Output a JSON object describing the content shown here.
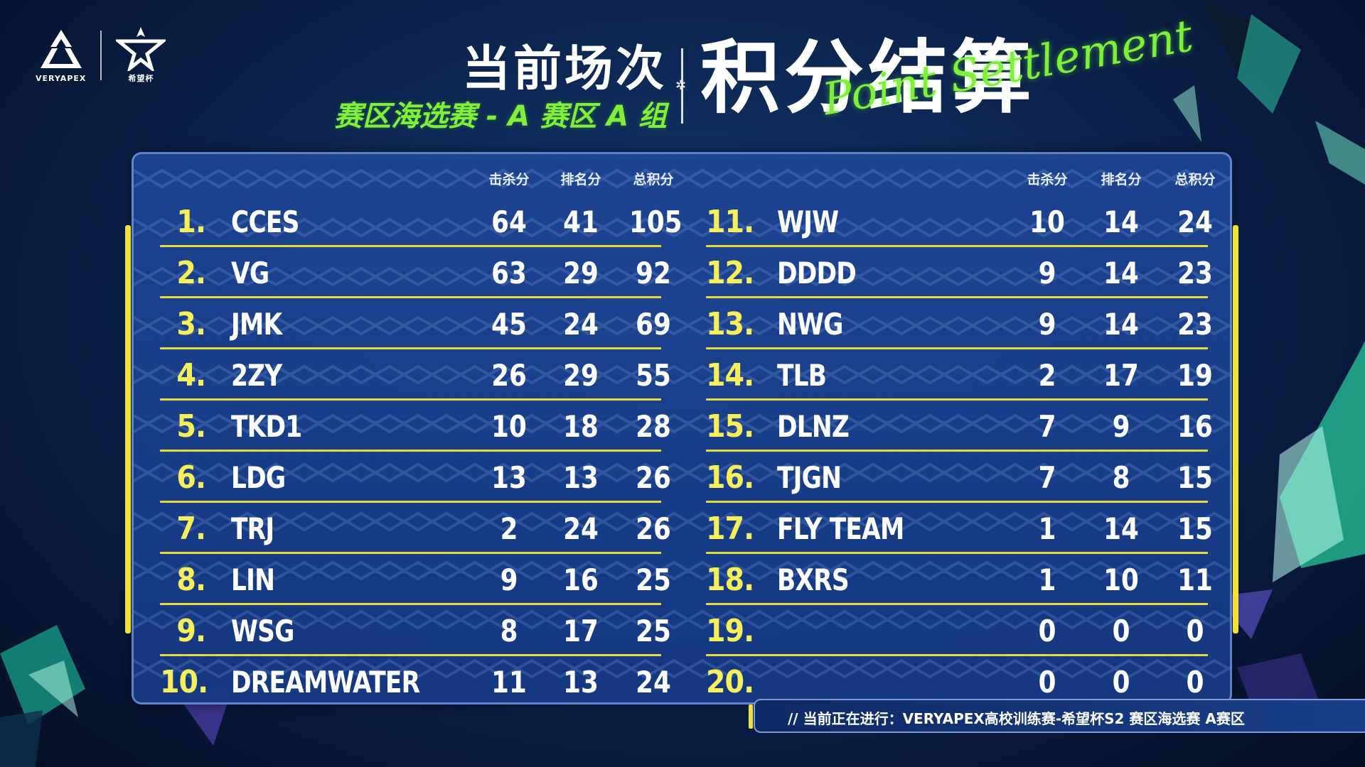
{
  "logos": [
    {
      "icon": "veryapex-logo-icon",
      "label": "VERYAPEX"
    },
    {
      "icon": "xiwangbei-logo-icon",
      "label": "希望杯"
    }
  ],
  "header": {
    "line1": "当前场次",
    "line2": "赛区海选赛 - A 赛区 A 组",
    "title": "积分结算",
    "script": "Point Settlement"
  },
  "columns": {
    "kill": "击杀分",
    "rank": "排名分",
    "total": "总积分"
  },
  "standings_left": [
    {
      "rank": "1.",
      "team": "CCES",
      "kill": "64",
      "place": "41",
      "total": "105"
    },
    {
      "rank": "2.",
      "team": "VG",
      "kill": "63",
      "place": "29",
      "total": "92"
    },
    {
      "rank": "3.",
      "team": "JMK",
      "kill": "45",
      "place": "24",
      "total": "69"
    },
    {
      "rank": "4.",
      "team": "2ZY",
      "kill": "26",
      "place": "29",
      "total": "55"
    },
    {
      "rank": "5.",
      "team": "TKD1",
      "kill": "10",
      "place": "18",
      "total": "28"
    },
    {
      "rank": "6.",
      "team": "LDG",
      "kill": "13",
      "place": "13",
      "total": "26"
    },
    {
      "rank": "7.",
      "team": "TRJ",
      "kill": "2",
      "place": "24",
      "total": "26"
    },
    {
      "rank": "8.",
      "team": "LIN",
      "kill": "9",
      "place": "16",
      "total": "25"
    },
    {
      "rank": "9.",
      "team": "WSG",
      "kill": "8",
      "place": "17",
      "total": "25"
    },
    {
      "rank": "10.",
      "team": "DREAMWATER",
      "kill": "11",
      "place": "13",
      "total": "24"
    }
  ],
  "standings_right": [
    {
      "rank": "11.",
      "team": "WJW",
      "kill": "10",
      "place": "14",
      "total": "24"
    },
    {
      "rank": "12.",
      "team": "DDDD",
      "kill": "9",
      "place": "14",
      "total": "23"
    },
    {
      "rank": "13.",
      "team": "NWG",
      "kill": "9",
      "place": "14",
      "total": "23"
    },
    {
      "rank": "14.",
      "team": "TLB",
      "kill": "2",
      "place": "17",
      "total": "19"
    },
    {
      "rank": "15.",
      "team": "DLNZ",
      "kill": "7",
      "place": "9",
      "total": "16"
    },
    {
      "rank": "16.",
      "team": "TJGN",
      "kill": "7",
      "place": "8",
      "total": "15"
    },
    {
      "rank": "17.",
      "team": "FLY TEAM",
      "kill": "1",
      "place": "14",
      "total": "15"
    },
    {
      "rank": "18.",
      "team": "BXRS",
      "kill": "1",
      "place": "10",
      "total": "11"
    },
    {
      "rank": "19.",
      "team": "",
      "kill": "0",
      "place": "0",
      "total": "0"
    },
    {
      "rank": "20.",
      "team": "",
      "kill": "0",
      "place": "0",
      "total": "0"
    }
  ],
  "ticker": "//   当前正在进行：VERYAPEX高校训练赛-希望杯S2  赛区海选赛    A赛区",
  "colors": {
    "accent_yellow": "#f1e23a",
    "accent_green": "#7fef3a",
    "panel_blue": "#1e4696"
  }
}
